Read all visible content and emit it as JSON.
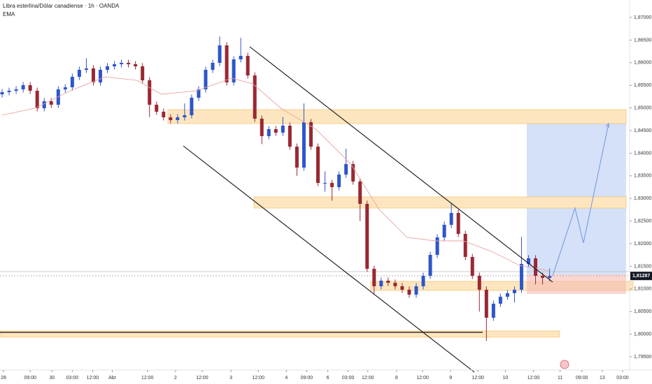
{
  "chart_data": {
    "type": "candlestick",
    "title": "Libra esterlina/Dólar canadiense · 1h · OANDA",
    "indicator": "EMA",
    "up_color": "#2e56c8",
    "down_color": "#992833",
    "ema_color": "#e9a3a3",
    "ylim": [
      1.79207,
      1.87386
    ],
    "yticks": [
      {
        "value": 1.87,
        "label": "1,87000"
      },
      {
        "value": 1.865,
        "label": "1,86500"
      },
      {
        "value": 1.86,
        "label": "1,86000"
      },
      {
        "value": 1.855,
        "label": "1,85500"
      },
      {
        "value": 1.85,
        "label": "1,85000"
      },
      {
        "value": 1.845,
        "label": "1,84500"
      },
      {
        "value": 1.84,
        "label": "1,84000"
      },
      {
        "value": 1.835,
        "label": "1,83500"
      },
      {
        "value": 1.83,
        "label": "1,83000"
      },
      {
        "value": 1.825,
        "label": "1,82500"
      },
      {
        "value": 1.82,
        "label": "1,82000"
      },
      {
        "value": 1.815,
        "label": "1,81500"
      },
      {
        "value": 1.81,
        "label": "1,81000"
      },
      {
        "value": 1.805,
        "label": "1,80500"
      },
      {
        "value": 1.8,
        "label": "1,80000"
      },
      {
        "value": 1.795,
        "label": "1,79500"
      }
    ],
    "xlim": [
      -0.3,
      89.4
    ],
    "xticks": [
      {
        "value": 0.2,
        "label": "28"
      },
      {
        "value": 4,
        "label": "09:00"
      },
      {
        "value": 7.1,
        "label": "30"
      },
      {
        "value": 10,
        "label": "03:00"
      },
      {
        "value": 12.9,
        "label": "12:00"
      },
      {
        "value": 15.7,
        "label": "Abr"
      },
      {
        "value": 20.7,
        "label": "12:00"
      },
      {
        "value": 24.7,
        "label": "2"
      },
      {
        "value": 28.5,
        "label": "12:00"
      },
      {
        "value": 32.6,
        "label": "3"
      },
      {
        "value": 36.5,
        "label": "12:00"
      },
      {
        "value": 40.5,
        "label": "4"
      },
      {
        "value": 43.4,
        "label": "09:00"
      },
      {
        "value": 46.4,
        "label": "6"
      },
      {
        "value": 49.3,
        "label": "03:00"
      },
      {
        "value": 52.1,
        "label": "12:00"
      },
      {
        "value": 56.2,
        "label": "8"
      },
      {
        "value": 59.9,
        "label": "12:00"
      },
      {
        "value": 63.9,
        "label": "9"
      },
      {
        "value": 67.8,
        "label": "12:00"
      },
      {
        "value": 71.7,
        "label": "10"
      },
      {
        "value": 75.7,
        "label": "12:00"
      },
      {
        "value": 79.5,
        "label": "11"
      },
      {
        "value": 82.6,
        "label": "09:00"
      },
      {
        "value": 85.5,
        "label": "13"
      },
      {
        "value": 88.4,
        "label": "03:00"
      }
    ],
    "open": [
      1.853,
      1.85349,
      1.8538,
      1.85411,
      1.85503,
      1.8538,
      1.84994,
      1.85148,
      1.85071,
      1.85411,
      1.85457,
      1.85688,
      1.85843,
      1.85874,
      1.85565,
      1.85843,
      1.8592,
      1.85966,
      1.85997,
      1.85966,
      1.8592,
      1.85611,
      1.85071,
      1.84917,
      1.84793,
      1.84732,
      1.84793,
      1.8484,
      1.85226,
      1.85411,
      1.85843,
      1.85997,
      1.86383,
      1.85565,
      1.86074,
      1.86151,
      1.85719,
      1.84763,
      1.84377,
      1.84531,
      1.84454,
      1.84608,
      1.84145,
      1.83682,
      1.84685,
      1.84145,
      1.83343,
      1.83343,
      1.8325,
      1.83528,
      1.83759,
      1.83374,
      1.8288,
      1.81445,
      1.81059,
      1.81182,
      1.81136,
      1.81059,
      1.80982,
      1.80874,
      1.81059,
      1.8129,
      1.81753,
      1.82139,
      1.82417,
      1.82679,
      1.82216,
      1.81707,
      1.8129,
      1.80982,
      1.80364,
      1.80673,
      1.80827,
      1.80905,
      1.80982,
      1.81553,
      1.81676,
      1.8129,
      1.81244
    ],
    "high": [
      1.85419,
      1.8545,
      1.85481,
      1.85573,
      1.85573,
      1.8545,
      1.85218,
      1.85218,
      1.85481,
      1.85527,
      1.85758,
      1.85913,
      1.861,
      1.85944,
      1.85913,
      1.8599,
      1.86036,
      1.86067,
      1.86067,
      1.86036,
      1.8599,
      1.85681,
      1.85141,
      1.84987,
      1.84863,
      1.84863,
      1.851,
      1.85296,
      1.85481,
      1.85913,
      1.86067,
      1.8658,
      1.86453,
      1.86144,
      1.8655,
      1.86221,
      1.85789,
      1.84833,
      1.84601,
      1.84601,
      1.848,
      1.84678,
      1.84215,
      1.851,
      1.84755,
      1.84215,
      1.836,
      1.83413,
      1.83598,
      1.841,
      1.83829,
      1.83444,
      1.8295,
      1.81515,
      1.81252,
      1.81252,
      1.81206,
      1.81129,
      1.81052,
      1.81129,
      1.8136,
      1.81823,
      1.82209,
      1.82487,
      1.829,
      1.82749,
      1.82286,
      1.81777,
      1.8136,
      1.81052,
      1.80743,
      1.80897,
      1.80975,
      1.81052,
      1.8215,
      1.81746,
      1.81746,
      1.8136,
      1.8145
    ],
    "low": [
      1.8523,
      1.85279,
      1.8531,
      1.85341,
      1.8531,
      1.84924,
      1.84924,
      1.85001,
      1.85001,
      1.85341,
      1.85387,
      1.85618,
      1.85773,
      1.85495,
      1.85495,
      1.85773,
      1.8585,
      1.85896,
      1.85896,
      1.8585,
      1.85541,
      1.848,
      1.84847,
      1.84723,
      1.84662,
      1.84662,
      1.84723,
      1.8477,
      1.85156,
      1.85341,
      1.85773,
      1.85927,
      1.85495,
      1.85495,
      1.86004,
      1.85649,
      1.84693,
      1.842,
      1.84307,
      1.84384,
      1.84384,
      1.84075,
      1.835,
      1.83612,
      1.84075,
      1.83273,
      1.8315,
      1.8295,
      1.8318,
      1.83458,
      1.83304,
      1.825,
      1.81375,
      1.809,
      1.80989,
      1.81066,
      1.80989,
      1.80912,
      1.80804,
      1.80804,
      1.80989,
      1.8122,
      1.81683,
      1.82069,
      1.82347,
      1.82146,
      1.81637,
      1.8122,
      1.805,
      1.7985,
      1.80294,
      1.80603,
      1.80757,
      1.807,
      1.80912,
      1.81483,
      1.811,
      1.811,
      1.81174
    ],
    "close": [
      1.85349,
      1.8538,
      1.85411,
      1.85503,
      1.8538,
      1.84994,
      1.85148,
      1.85071,
      1.85411,
      1.85457,
      1.85688,
      1.85843,
      1.85874,
      1.85565,
      1.85843,
      1.8592,
      1.85966,
      1.85997,
      1.85966,
      1.8592,
      1.85611,
      1.85071,
      1.84917,
      1.84793,
      1.84732,
      1.84793,
      1.8484,
      1.85226,
      1.85411,
      1.85843,
      1.85997,
      1.86383,
      1.85565,
      1.86074,
      1.86151,
      1.85719,
      1.84763,
      1.84377,
      1.84531,
      1.84454,
      1.84608,
      1.84145,
      1.83682,
      1.84685,
      1.84145,
      1.83343,
      1.83343,
      1.8325,
      1.83528,
      1.83759,
      1.83374,
      1.8288,
      1.81445,
      1.81059,
      1.81182,
      1.81136,
      1.81059,
      1.80982,
      1.80874,
      1.81059,
      1.8129,
      1.81753,
      1.82139,
      1.82417,
      1.82679,
      1.82216,
      1.81707,
      1.8129,
      1.80982,
      1.80364,
      1.80673,
      1.80827,
      1.80905,
      1.80982,
      1.81553,
      1.81676,
      1.8129,
      1.81244,
      1.81287
    ],
    "ema": {
      "x": [
        0,
        4.7,
        9.7,
        14.7,
        19.2,
        22.7,
        27.7,
        32.7,
        35.7,
        39.7,
        44.7,
        49.7,
        53.7,
        57.7,
        61.7,
        65.7,
        69.7,
        73.7,
        78
      ],
      "values": [
        1.8484,
        1.84994,
        1.8538,
        1.85688,
        1.85611,
        1.85303,
        1.8538,
        1.85658,
        1.85534,
        1.84994,
        1.84531,
        1.83759,
        1.82757,
        1.82139,
        1.82062,
        1.82062,
        1.8183,
        1.81522,
        1.81398
      ]
    },
    "last_price": {
      "value": 1.81287,
      "label": "1,81287"
    }
  }
}
